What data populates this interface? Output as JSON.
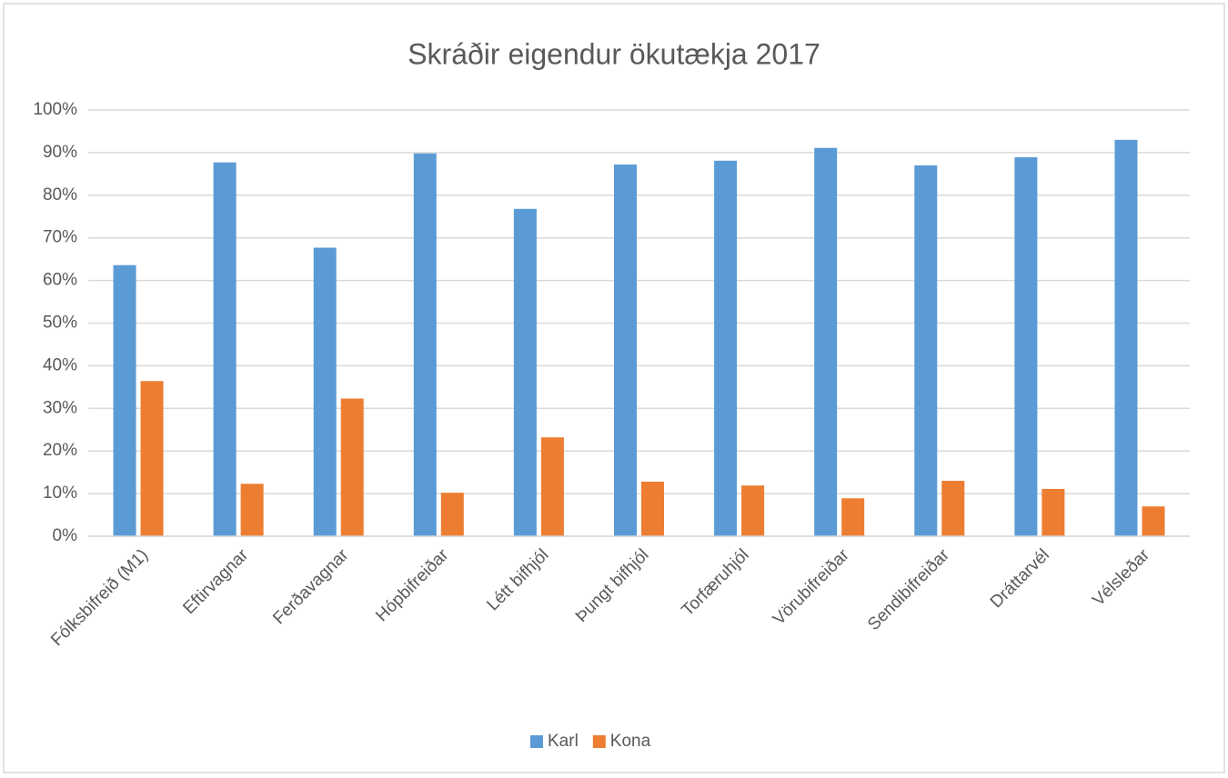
{
  "chart_data": {
    "type": "bar",
    "title": "Skráðir eigendur ökutækja 2017",
    "categories": [
      "Fólksbifreið (M1)",
      "Eftirvagnar",
      "Ferðavagnar",
      "Hópbifreiðar",
      "Létt bifhjól",
      "Þungt bifhjól",
      "Torfæruhjól",
      "Vörubifreiðar",
      "Sendibifreiðar",
      "Dráttarvél",
      "Vélsleðar"
    ],
    "series": [
      {
        "name": "Karl",
        "color": "#5b9bd5",
        "values": [
          63.6,
          87.7,
          67.7,
          89.8,
          76.8,
          87.2,
          88.1,
          91.1,
          87.0,
          88.9,
          93.0
        ]
      },
      {
        "name": "Kona",
        "color": "#ed7d31",
        "values": [
          36.4,
          12.3,
          32.3,
          10.2,
          23.2,
          12.8,
          11.9,
          8.9,
          13.0,
          11.1,
          7.0
        ]
      }
    ],
    "ylim": [
      0,
      100
    ],
    "yticks": [
      {
        "value": 0,
        "label": "0%"
      },
      {
        "value": 10,
        "label": "10%"
      },
      {
        "value": 20,
        "label": "20%"
      },
      {
        "value": 30,
        "label": "30%"
      },
      {
        "value": 40,
        "label": "40%"
      },
      {
        "value": 50,
        "label": "50%"
      },
      {
        "value": 60,
        "label": "60%"
      },
      {
        "value": 70,
        "label": "70%"
      },
      {
        "value": 80,
        "label": "80%"
      },
      {
        "value": 90,
        "label": "90%"
      },
      {
        "value": 100,
        "label": "100%"
      }
    ],
    "grid": true,
    "legend": "bottom"
  }
}
